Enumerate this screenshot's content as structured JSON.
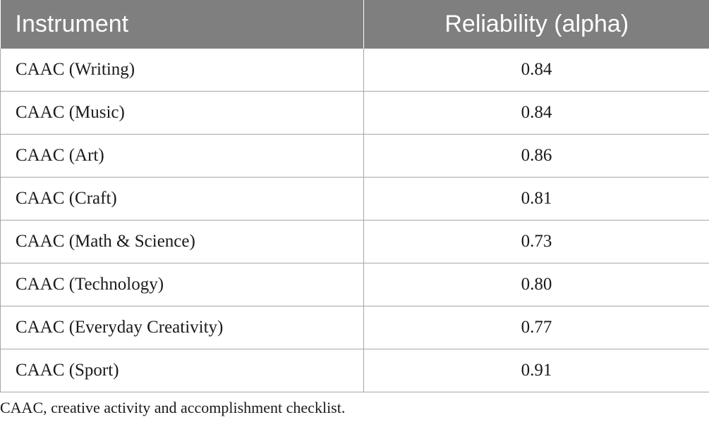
{
  "table": {
    "headers": [
      "Instrument",
      "Reliability (alpha)"
    ],
    "rows": [
      [
        "CAAC (Writing)",
        "0.84"
      ],
      [
        "CAAC (Music)",
        "0.84"
      ],
      [
        "CAAC (Art)",
        "0.86"
      ],
      [
        "CAAC (Craft)",
        "0.81"
      ],
      [
        "CAAC (Math & Science)",
        "0.73"
      ],
      [
        "CAAC (Technology)",
        "0.80"
      ],
      [
        "CAAC (Everyday Creativity)",
        "0.77"
      ],
      [
        "CAAC (Sport)",
        "0.91"
      ]
    ],
    "header_bg": "#7f7f7f",
    "header_text_color": "#ffffff",
    "border_color": "#a6a6a6"
  },
  "footnote": "CAAC, creative activity and accomplishment checklist."
}
